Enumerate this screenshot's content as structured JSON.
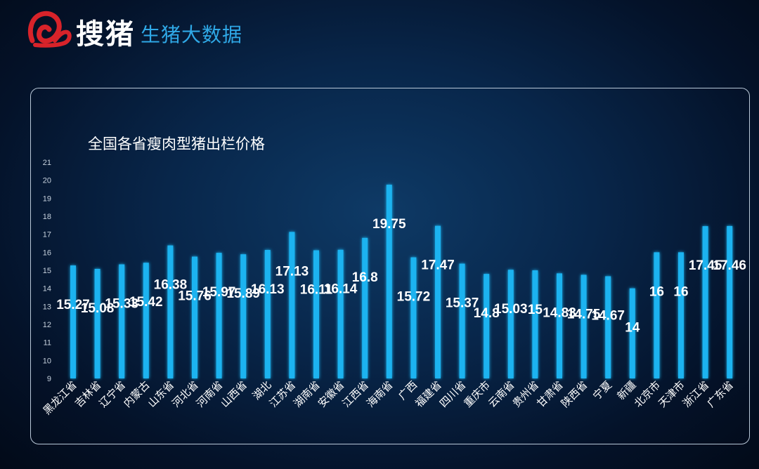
{
  "brand": {
    "name": "搜猪",
    "subtitle": "生猪大数据",
    "logo_icon": "brand-logo-icon"
  },
  "chart_data": {
    "type": "bar",
    "title": "全国各省瘦肉型猪出栏价格",
    "xlabel": "",
    "ylabel": "",
    "ylim": [
      9,
      21
    ],
    "yticks": [
      9,
      10,
      11,
      12,
      13,
      14,
      15,
      16,
      17,
      18,
      19,
      20,
      21
    ],
    "grid": false,
    "legend": "none",
    "bar_color": "#1ab3f0",
    "label_color": "#ffffff",
    "categories": [
      "黑龙江省",
      "吉林省",
      "辽宁省",
      "内蒙古",
      "山东省",
      "河北省",
      "河南省",
      "山西省",
      "湖北",
      "江苏省",
      "湖南省",
      "安徽省",
      "江西省",
      "海南省",
      "广西",
      "福建省",
      "四川省",
      "重庆市",
      "云南省",
      "贵州省",
      "甘肃省",
      "陕西省",
      "宁夏",
      "新疆",
      "北京市",
      "天津市",
      "浙江省",
      "广东省"
    ],
    "values": [
      15.27,
      15.08,
      15.33,
      15.42,
      16.38,
      15.76,
      15.97,
      15.89,
      16.13,
      17.13,
      16.11,
      16.14,
      16.8,
      19.75,
      15.72,
      17.47,
      15.37,
      14.8,
      15.03,
      15,
      14.83,
      14.75,
      14.67,
      14,
      16,
      16,
      17.45,
      17.46
    ]
  }
}
